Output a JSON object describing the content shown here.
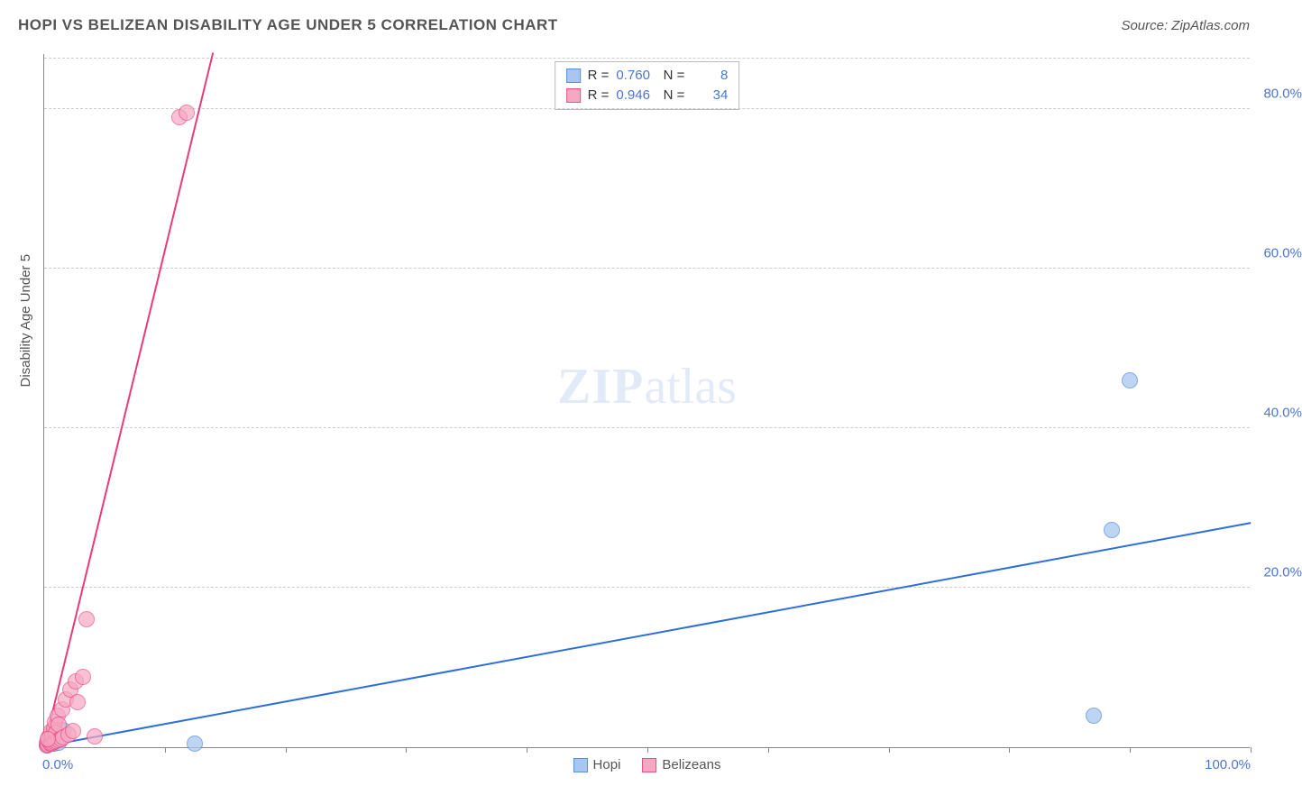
{
  "header": {
    "title": "HOPI VS BELIZEAN DISABILITY AGE UNDER 5 CORRELATION CHART",
    "source": "Source: ZipAtlas.com"
  },
  "chart": {
    "type": "scatter",
    "ylabel": "Disability Age Under 5",
    "watermark_zip": "ZIP",
    "watermark_atlas": "atlas",
    "background_color": "#ffffff",
    "grid_color": "#cccccc",
    "axis_color": "#888888",
    "tick_label_color": "#4a76d4",
    "xlimits": [
      0,
      100
    ],
    "ylimits": [
      0,
      87
    ],
    "ytick_positions": [
      20,
      40,
      60,
      80
    ],
    "ytick_labels": [
      "20.0%",
      "40.0%",
      "60.0%",
      "80.0%"
    ],
    "xtick_positions": [
      0,
      10,
      20,
      30,
      40,
      50,
      60,
      70,
      80,
      90,
      100
    ],
    "xtick_labels_show": {
      "0": "0.0%",
      "100": "100.0%"
    },
    "series": [
      {
        "name": "Hopi",
        "fill_color": "#a9c6f0",
        "stroke_color": "#5c8fdb",
        "line_color": "#2d6fd6",
        "marker_radius": 9,
        "marker_opacity": 0.75,
        "line_width": 2,
        "R": "0.760",
        "N": "8",
        "regression": {
          "x1": 0,
          "y1": 0,
          "x2": 100,
          "y2": 28
        },
        "points": [
          {
            "x": 0.2,
            "y": 0.2
          },
          {
            "x": 0.8,
            "y": 0.4
          },
          {
            "x": 1.2,
            "y": 0.6
          },
          {
            "x": 1.6,
            "y": 2.2
          },
          {
            "x": 12.5,
            "y": 0.4
          },
          {
            "x": 87.0,
            "y": 4.0
          },
          {
            "x": 88.5,
            "y": 27.2
          },
          {
            "x": 90.0,
            "y": 46.0
          }
        ]
      },
      {
        "name": "Belizeans",
        "fill_color": "#f6a8c2",
        "stroke_color": "#ea4f87",
        "line_color": "#ea3a7a",
        "marker_radius": 9,
        "marker_opacity": 0.7,
        "line_width": 2,
        "R": "0.946",
        "N": "34",
        "regression": {
          "x1": 0,
          "y1": 0,
          "x2": 14,
          "y2": 87
        },
        "points": [
          {
            "x": 0.2,
            "y": 0.2
          },
          {
            "x": 0.2,
            "y": 0.6
          },
          {
            "x": 0.3,
            "y": 0.3
          },
          {
            "x": 0.4,
            "y": 0.8
          },
          {
            "x": 0.4,
            "y": 1.2
          },
          {
            "x": 0.5,
            "y": 0.4
          },
          {
            "x": 0.5,
            "y": 1.6
          },
          {
            "x": 0.6,
            "y": 0.5
          },
          {
            "x": 0.6,
            "y": 2.0
          },
          {
            "x": 0.7,
            "y": 0.6
          },
          {
            "x": 0.7,
            "y": 1.4
          },
          {
            "x": 0.8,
            "y": 0.7
          },
          {
            "x": 0.8,
            "y": 2.4
          },
          {
            "x": 0.9,
            "y": 3.2
          },
          {
            "x": 1.0,
            "y": 0.8
          },
          {
            "x": 1.0,
            "y": 1.8
          },
          {
            "x": 1.1,
            "y": 4.0
          },
          {
            "x": 1.2,
            "y": 0.9
          },
          {
            "x": 1.2,
            "y": 2.8
          },
          {
            "x": 1.4,
            "y": 1.0
          },
          {
            "x": 1.5,
            "y": 4.8
          },
          {
            "x": 1.6,
            "y": 1.2
          },
          {
            "x": 1.8,
            "y": 6.0
          },
          {
            "x": 2.0,
            "y": 1.6
          },
          {
            "x": 2.2,
            "y": 7.2
          },
          {
            "x": 2.4,
            "y": 2.0
          },
          {
            "x": 2.6,
            "y": 8.2
          },
          {
            "x": 2.8,
            "y": 5.6
          },
          {
            "x": 3.2,
            "y": 8.8
          },
          {
            "x": 3.5,
            "y": 16.0
          },
          {
            "x": 4.2,
            "y": 1.4
          },
          {
            "x": 11.2,
            "y": 79.0
          },
          {
            "x": 11.8,
            "y": 79.6
          },
          {
            "x": 0.3,
            "y": 1.0
          }
        ]
      }
    ]
  }
}
